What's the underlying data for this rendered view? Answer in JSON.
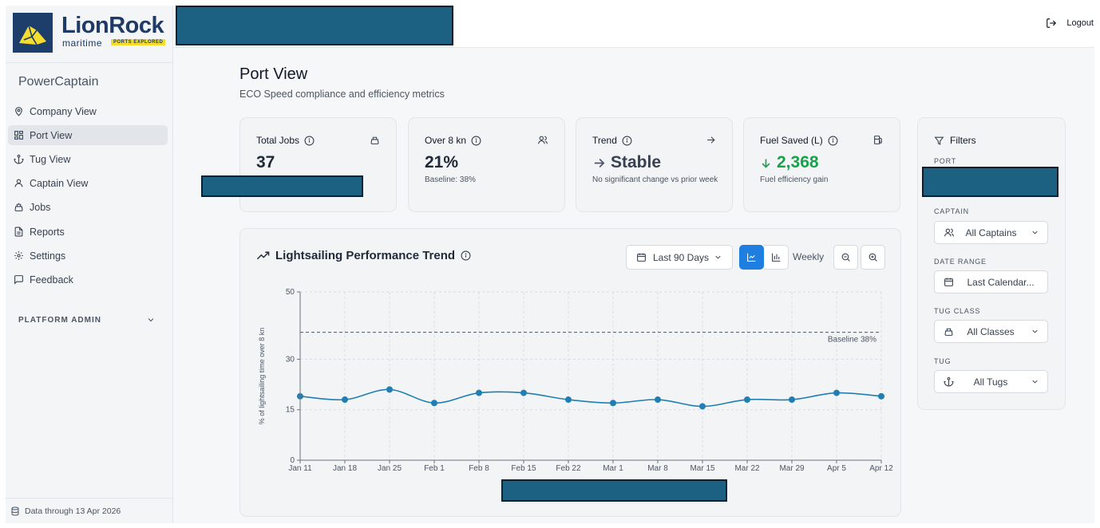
{
  "brand": {
    "name": "LionRock",
    "sub": "maritime",
    "tag": "PORTS EXPLORED"
  },
  "app_name": "PowerCaptain",
  "nav": [
    {
      "label": "Company View",
      "icon": "map-pin-icon"
    },
    {
      "label": "Port View",
      "icon": "grid-icon",
      "active": true
    },
    {
      "label": "Tug View",
      "icon": "anchor-icon"
    },
    {
      "label": "Captain View",
      "icon": "user-icon"
    },
    {
      "label": "Jobs",
      "icon": "ship-icon"
    },
    {
      "label": "Reports",
      "icon": "file-icon"
    },
    {
      "label": "Settings",
      "icon": "gear-icon"
    },
    {
      "label": "Feedback",
      "icon": "message-icon"
    }
  ],
  "platform_admin": "PLATFORM ADMIN",
  "data_through": "Data through 13 Apr 2026",
  "logout": "Logout",
  "page": {
    "title": "Port View",
    "subtitle": "ECO Speed compliance and efficiency metrics"
  },
  "metrics": [
    {
      "label": "Total Jobs",
      "value": "37",
      "note": ""
    },
    {
      "label": "Over 8 kn",
      "value": "21%",
      "note": "Baseline: 38%"
    },
    {
      "label": "Trend",
      "value": "Stable",
      "note": "No significant change vs prior week"
    },
    {
      "label": "Fuel Saved (L)",
      "value": "2,368",
      "note": "Fuel efficiency gain",
      "color": "#16a34a"
    }
  ],
  "chart_panel": {
    "title": "Lightsailing Performance Trend",
    "range": "Last 90 Days",
    "granularity": "Weekly"
  },
  "chart_data": {
    "type": "line",
    "categories": [
      "Jan 11",
      "Jan 18",
      "Jan 25",
      "Feb 1",
      "Feb 8",
      "Feb 15",
      "Feb 22",
      "Mar 1",
      "Mar 8",
      "Mar 15",
      "Mar 22",
      "Mar 29",
      "Apr 5",
      "Apr 12"
    ],
    "values": [
      19,
      18,
      21,
      17,
      20,
      20,
      18,
      17,
      18,
      16,
      18,
      18,
      20,
      19
    ],
    "ylabel": "% of lightsailing time over 8 kn",
    "yticks": [
      0,
      15,
      30,
      50
    ],
    "ylim": [
      0,
      50
    ],
    "baseline": {
      "value": 38,
      "label": "Baseline 38%"
    },
    "grid": true,
    "line_color": "#1f7fb3"
  },
  "filters": {
    "title": "Filters",
    "port_label": "PORT",
    "captain_label": "CAPTAIN",
    "captain_value": "All Captains",
    "date_label": "DATE RANGE",
    "date_value": "Last Calendar...",
    "tug_class_label": "TUG CLASS",
    "tug_class_value": "All Classes",
    "tug_label": "TUG",
    "tug_value": "All Tugs"
  }
}
